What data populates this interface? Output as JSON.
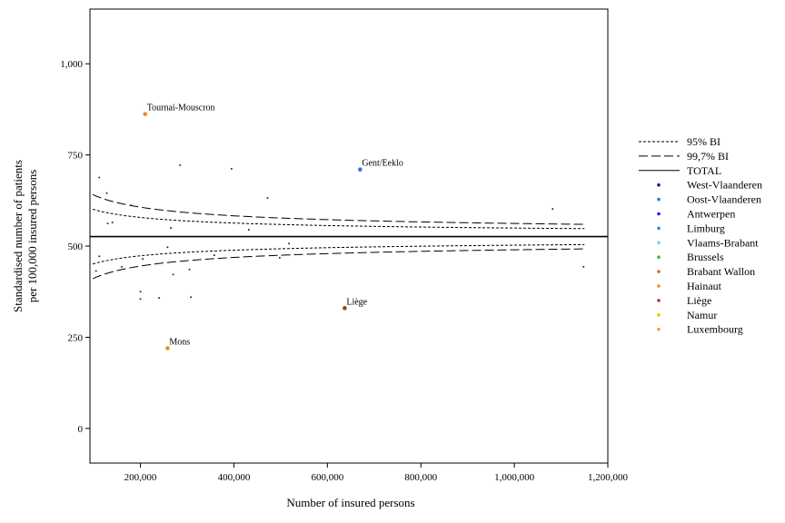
{
  "chart_data": {
    "type": "scatter",
    "xlabel": "Number of insured persons",
    "ylabel_lines": [
      "Standardised number of patients",
      "per 100,000 insured persons"
    ],
    "xlim": [
      92000,
      1200000
    ],
    "ylim": [
      -95,
      1150
    ],
    "x_ticks": [
      {
        "value": 200000,
        "label": "200,000"
      },
      {
        "value": 400000,
        "label": "400,000"
      },
      {
        "value": 600000,
        "label": "600,000"
      },
      {
        "value": 800000,
        "label": "800,000"
      },
      {
        "value": 1000000,
        "label": "1,000,000"
      },
      {
        "value": 1200000,
        "label": "1,200,000"
      }
    ],
    "y_ticks": [
      {
        "value": 0,
        "label": "0"
      },
      {
        "value": 250,
        "label": "250"
      },
      {
        "value": 500,
        "label": "500"
      },
      {
        "value": 750,
        "label": "750"
      },
      {
        "value": 1000,
        "label": "1,000"
      }
    ],
    "total": 526,
    "control_limits": {
      "x_range": [
        98000,
        1150000
      ],
      "k95": 23520,
      "k997": 36100
    },
    "legend": [
      {
        "label": "95% BI",
        "kind": "line",
        "dash": "3,2",
        "color": "#000000"
      },
      {
        "label": "99,7% BI",
        "kind": "line",
        "dash": "10,4",
        "color": "#000000"
      },
      {
        "label": "TOTAL",
        "kind": "line",
        "dash": "",
        "color": "#000000"
      },
      {
        "label": "West-Vlaanderen",
        "kind": "marker",
        "color": "#1a237e"
      },
      {
        "label": "Oost-Vlaanderen",
        "kind": "marker",
        "color": "#3b6fd4"
      },
      {
        "label": "Antwerpen",
        "kind": "marker",
        "color": "#1f1fe0"
      },
      {
        "label": "Limburg",
        "kind": "marker",
        "color": "#2a8fd8"
      },
      {
        "label": "Vlaams-Brabant",
        "kind": "marker",
        "color": "#7ecbe8"
      },
      {
        "label": "Brussels",
        "kind": "marker",
        "color": "#3cb34a"
      },
      {
        "label": "Brabant Wallon",
        "kind": "marker",
        "color": "#c8703a"
      },
      {
        "label": "Hainaut",
        "kind": "marker",
        "color": "#f08a24"
      },
      {
        "label": "Liège",
        "kind": "marker",
        "color": "#8b4a2b"
      },
      {
        "label": "Namur",
        "kind": "marker",
        "color": "#f2c200"
      },
      {
        "label": "Luxembourg",
        "kind": "marker",
        "color": "#f0a830"
      }
    ],
    "highlighted_points": [
      {
        "name": "Tournai-Mouscron",
        "x": 210000,
        "y": 862,
        "color": "#f08a24"
      },
      {
        "name": "Gent/Eeklo",
        "x": 670000,
        "y": 710,
        "color": "#3b6fd4"
      },
      {
        "name": "Liège",
        "x": 637000,
        "y": 330,
        "color": "#8b4a2b"
      },
      {
        "name": "Mons",
        "x": 258000,
        "y": 220,
        "color": "#f08a24"
      }
    ],
    "other_points": [
      {
        "x": 112000,
        "y": 688
      },
      {
        "x": 128000,
        "y": 645
      },
      {
        "x": 130000,
        "y": 562
      },
      {
        "x": 140000,
        "y": 565
      },
      {
        "x": 180000,
        "y": 612
      },
      {
        "x": 285000,
        "y": 722
      },
      {
        "x": 395000,
        "y": 712
      },
      {
        "x": 472000,
        "y": 632
      },
      {
        "x": 265000,
        "y": 550
      },
      {
        "x": 432000,
        "y": 545
      },
      {
        "x": 1082000,
        "y": 602
      },
      {
        "x": 112000,
        "y": 472
      },
      {
        "x": 105000,
        "y": 432
      },
      {
        "x": 160000,
        "y": 443
      },
      {
        "x": 205000,
        "y": 465
      },
      {
        "x": 258000,
        "y": 497
      },
      {
        "x": 270000,
        "y": 422
      },
      {
        "x": 305000,
        "y": 436
      },
      {
        "x": 358000,
        "y": 475
      },
      {
        "x": 498000,
        "y": 468
      },
      {
        "x": 518000,
        "y": 507
      },
      {
        "x": 200000,
        "y": 375
      },
      {
        "x": 200000,
        "y": 355
      },
      {
        "x": 240000,
        "y": 358
      },
      {
        "x": 308000,
        "y": 360
      },
      {
        "x": 1148000,
        "y": 443
      }
    ]
  }
}
